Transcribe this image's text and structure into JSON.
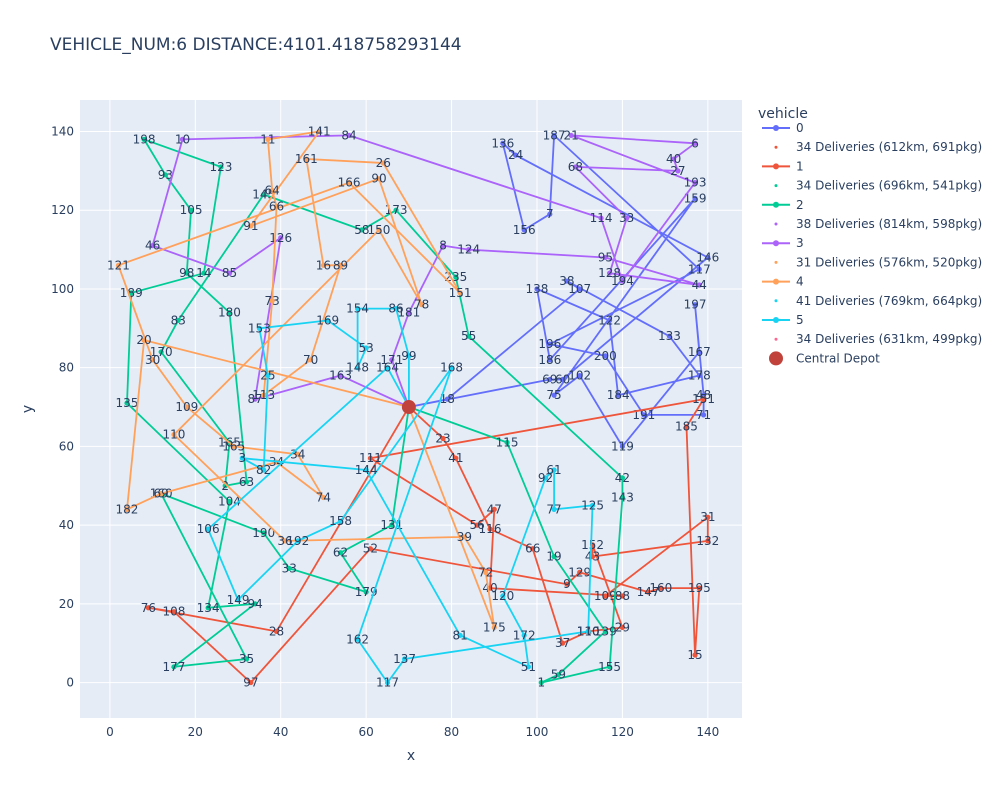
{
  "chart_data": {
    "type": "line",
    "title": "VEHICLE_NUM:6 DISTANCE:4101.418758293144",
    "xlabel": "x",
    "ylabel": "y",
    "xlim": [
      -7,
      148
    ],
    "ylim": [
      -9,
      148
    ],
    "xticks": [
      0,
      20,
      40,
      60,
      80,
      100,
      120,
      140
    ],
    "yticks": [
      0,
      20,
      40,
      60,
      80,
      100,
      120,
      140
    ],
    "grid": true,
    "legend_title": "vehicle",
    "legend_position": "right",
    "depot": {
      "name": "Central Depot",
      "x": 70,
      "y": 70,
      "color": "#C0423A"
    },
    "series": [
      {
        "name": "0",
        "color": "#636efa",
        "info": "34 Deliveries (612km, 691pkg)",
        "points": [
          {
            "id": "",
            "x": 70,
            "y": 70
          },
          {
            "id": "18",
            "x": 79,
            "y": 72
          },
          {
            "id": "107",
            "x": 110,
            "y": 100
          },
          {
            "id": "38",
            "x": 107,
            "y": 102
          },
          {
            "id": "133",
            "x": 131,
            "y": 88
          },
          {
            "id": "178",
            "x": 138,
            "y": 78
          },
          {
            "id": "184",
            "x": 119,
            "y": 73
          },
          {
            "id": "122",
            "x": 117,
            "y": 92
          },
          {
            "id": "138",
            "x": 100,
            "y": 100
          },
          {
            "id": "186",
            "x": 103,
            "y": 82
          },
          {
            "id": "159",
            "x": 137,
            "y": 123
          },
          {
            "id": "75",
            "x": 104,
            "y": 73
          },
          {
            "id": "102",
            "x": 110,
            "y": 78
          },
          {
            "id": "119",
            "x": 120,
            "y": 60
          },
          {
            "id": "167",
            "x": 138,
            "y": 84
          },
          {
            "id": "197",
            "x": 137,
            "y": 96
          },
          {
            "id": "48",
            "x": 139,
            "y": 73
          },
          {
            "id": "71",
            "x": 139,
            "y": 68
          },
          {
            "id": "191",
            "x": 125,
            "y": 68
          },
          {
            "id": "200",
            "x": 116,
            "y": 83
          },
          {
            "id": "196",
            "x": 103,
            "y": 86
          },
          {
            "id": "117",
            "x": 138,
            "y": 105
          },
          {
            "id": "187",
            "x": 104,
            "y": 139
          },
          {
            "id": "7",
            "x": 103,
            "y": 119
          },
          {
            "id": "156",
            "x": 97,
            "y": 115
          },
          {
            "id": "136",
            "x": 92,
            "y": 137
          },
          {
            "id": "24",
            "x": 95,
            "y": 134
          },
          {
            "id": "146",
            "x": 140,
            "y": 108
          },
          {
            "id": "60",
            "x": 106,
            "y": 77
          },
          {
            "id": "69",
            "x": 103,
            "y": 77
          },
          {
            "id": "",
            "x": 70,
            "y": 70
          }
        ]
      },
      {
        "name": "34 Deliveries (612km, 691pkg)",
        "color": "#ef553b",
        "marker_only": true,
        "points": []
      },
      {
        "name": "1",
        "color": "#ef553b",
        "info": "34 Deliveries (696km, 541pkg)",
        "points": [
          {
            "id": "",
            "x": 70,
            "y": 70
          },
          {
            "id": "23",
            "x": 78,
            "y": 62
          },
          {
            "id": "41",
            "x": 81,
            "y": 57
          },
          {
            "id": "116",
            "x": 89,
            "y": 39
          },
          {
            "id": "66",
            "x": 99,
            "y": 34
          },
          {
            "id": "37",
            "x": 106,
            "y": 10
          },
          {
            "id": "140",
            "x": 112,
            "y": 13
          },
          {
            "id": "29",
            "x": 120,
            "y": 14
          },
          {
            "id": "152",
            "x": 113,
            "y": 35
          },
          {
            "id": "43",
            "x": 113,
            "y": 32
          },
          {
            "id": "132",
            "x": 140,
            "y": 36
          },
          {
            "id": "31",
            "x": 140,
            "y": 42
          },
          {
            "id": "109",
            "x": 116,
            "y": 22
          },
          {
            "id": "88",
            "x": 120,
            "y": 22
          },
          {
            "id": "40",
            "x": 89,
            "y": 24
          },
          {
            "id": "47",
            "x": 90,
            "y": 44
          },
          {
            "id": "56",
            "x": 86,
            "y": 40
          },
          {
            "id": "111",
            "x": 61,
            "y": 57
          },
          {
            "id": "151",
            "x": 139,
            "y": 72
          },
          {
            "id": "185",
            "x": 135,
            "y": 65
          },
          {
            "id": "15",
            "x": 137,
            "y": 7
          },
          {
            "id": "195",
            "x": 138,
            "y": 24
          },
          {
            "id": "160",
            "x": 129,
            "y": 24
          },
          {
            "id": "147",
            "x": 126,
            "y": 23
          },
          {
            "id": "129",
            "x": 110,
            "y": 28
          },
          {
            "id": "9",
            "x": 107,
            "y": 25
          },
          {
            "id": "52",
            "x": 61,
            "y": 34
          },
          {
            "id": "97",
            "x": 33,
            "y": 0
          },
          {
            "id": "108",
            "x": 15,
            "y": 18
          },
          {
            "id": "76",
            "x": 9,
            "y": 19
          },
          {
            "id": "28",
            "x": 39,
            "y": 13
          },
          {
            "id": "",
            "x": 70,
            "y": 70
          }
        ]
      },
      {
        "name": "34 Deliveries (696km, 541pkg)",
        "color": "#00cc96",
        "marker_only": true,
        "points": []
      },
      {
        "name": "2",
        "color": "#00cc96",
        "info": "38 Deliveries (814km, 598pkg)",
        "points": [
          {
            "id": "",
            "x": 70,
            "y": 70
          },
          {
            "id": "115",
            "x": 93,
            "y": 61
          },
          {
            "id": "19",
            "x": 104,
            "y": 32
          },
          {
            "id": "139",
            "x": 116,
            "y": 13
          },
          {
            "id": "59",
            "x": 105,
            "y": 2
          },
          {
            "id": "1",
            "x": 101,
            "y": 0
          },
          {
            "id": "155",
            "x": 117,
            "y": 4
          },
          {
            "id": "143",
            "x": 120,
            "y": 47
          },
          {
            "id": "42",
            "x": 120,
            "y": 52
          },
          {
            "id": "55",
            "x": 84,
            "y": 88
          },
          {
            "id": "235",
            "x": 81,
            "y": 103
          },
          {
            "id": "173",
            "x": 67,
            "y": 120
          },
          {
            "id": "58",
            "x": 59,
            "y": 115
          },
          {
            "id": "145",
            "x": 36,
            "y": 124
          },
          {
            "id": "83",
            "x": 16,
            "y": 92
          },
          {
            "id": "170",
            "x": 12,
            "y": 84
          },
          {
            "id": "165",
            "x": 28,
            "y": 61
          },
          {
            "id": "2",
            "x": 27,
            "y": 50
          },
          {
            "id": "63",
            "x": 32,
            "y": 51
          },
          {
            "id": "180",
            "x": 28,
            "y": 94
          },
          {
            "id": "98",
            "x": 18,
            "y": 104
          },
          {
            "id": "105",
            "x": 19,
            "y": 120
          },
          {
            "id": "93",
            "x": 13,
            "y": 129
          },
          {
            "id": "198",
            "x": 8,
            "y": 138
          },
          {
            "id": "123",
            "x": 26,
            "y": 131
          },
          {
            "id": "14",
            "x": 22,
            "y": 104
          },
          {
            "id": "189",
            "x": 5,
            "y": 99
          },
          {
            "id": "135",
            "x": 4,
            "y": 71
          },
          {
            "id": "104",
            "x": 28,
            "y": 46
          },
          {
            "id": "134",
            "x": 23,
            "y": 19
          },
          {
            "id": "94",
            "x": 34,
            "y": 20
          },
          {
            "id": "177",
            "x": 15,
            "y": 4
          },
          {
            "id": "35",
            "x": 32,
            "y": 6
          },
          {
            "id": "160",
            "x": 12,
            "y": 48
          },
          {
            "id": "190",
            "x": 36,
            "y": 38
          },
          {
            "id": "33",
            "x": 42,
            "y": 29
          },
          {
            "id": "179",
            "x": 60,
            "y": 23
          },
          {
            "id": "62",
            "x": 54,
            "y": 33
          },
          {
            "id": "131",
            "x": 66,
            "y": 40
          },
          {
            "id": "",
            "x": 70,
            "y": 70
          }
        ]
      },
      {
        "name": "38 Deliveries (814km, 598pkg)",
        "color": "#ab63fa",
        "marker_only": true,
        "points": []
      },
      {
        "name": "3",
        "color": "#ab63fa",
        "info": "31 Deliveries (576km, 520pkg)",
        "points": [
          {
            "id": "",
            "x": 70,
            "y": 70
          },
          {
            "id": "171",
            "x": 66,
            "y": 82
          },
          {
            "id": "181",
            "x": 70,
            "y": 94
          },
          {
            "id": "8",
            "x": 78,
            "y": 111
          },
          {
            "id": "124",
            "x": 84,
            "y": 110
          },
          {
            "id": "95",
            "x": 116,
            "y": 108
          },
          {
            "id": "44",
            "x": 138,
            "y": 101
          },
          {
            "id": "128",
            "x": 117,
            "y": 104
          },
          {
            "id": "33",
            "x": 121,
            "y": 118
          },
          {
            "id": "68",
            "x": 109,
            "y": 131
          },
          {
            "id": "27",
            "x": 133,
            "y": 130
          },
          {
            "id": "40",
            "x": 132,
            "y": 133
          },
          {
            "id": "6",
            "x": 137,
            "y": 137
          },
          {
            "id": "21",
            "x": 108,
            "y": 139
          },
          {
            "id": "193",
            "x": 137,
            "y": 127
          },
          {
            "id": "194",
            "x": 120,
            "y": 102
          },
          {
            "id": "114",
            "x": 115,
            "y": 118
          },
          {
            "id": "84",
            "x": 56,
            "y": 139
          },
          {
            "id": "10",
            "x": 17,
            "y": 138
          },
          {
            "id": "46",
            "x": 10,
            "y": 111
          },
          {
            "id": "85",
            "x": 28,
            "y": 104
          },
          {
            "id": "126",
            "x": 40,
            "y": 113
          },
          {
            "id": "87",
            "x": 34,
            "y": 72
          },
          {
            "id": "163",
            "x": 54,
            "y": 78
          },
          {
            "id": "",
            "x": 70,
            "y": 70
          }
        ]
      },
      {
        "name": "31 Deliveries (576km, 520pkg)",
        "color": "#ffa15a",
        "marker_only": true,
        "points": []
      },
      {
        "name": "4",
        "color": "#ffa15a",
        "info": "41 Deliveries (769km, 664pkg)",
        "points": [
          {
            "id": "",
            "x": 70,
            "y": 70
          },
          {
            "id": "175",
            "x": 90,
            "y": 14
          },
          {
            "id": "72",
            "x": 88,
            "y": 28
          },
          {
            "id": "39",
            "x": 83,
            "y": 37
          },
          {
            "id": "36",
            "x": 41,
            "y": 36
          },
          {
            "id": "110",
            "x": 15,
            "y": 63
          },
          {
            "id": "150",
            "x": 63,
            "y": 115
          },
          {
            "id": "78",
            "x": 73,
            "y": 96
          },
          {
            "id": "90",
            "x": 63,
            "y": 128
          },
          {
            "id": "91",
            "x": 33,
            "y": 116
          },
          {
            "id": "141",
            "x": 49,
            "y": 140
          },
          {
            "id": "11",
            "x": 37,
            "y": 138
          },
          {
            "id": "64",
            "x": 38,
            "y": 125
          },
          {
            "id": "66",
            "x": 39,
            "y": 121
          },
          {
            "id": "73",
            "x": 38,
            "y": 97
          },
          {
            "id": "113",
            "x": 36,
            "y": 73
          },
          {
            "id": "70",
            "x": 47,
            "y": 82
          },
          {
            "id": "89",
            "x": 54,
            "y": 106
          },
          {
            "id": "16",
            "x": 50,
            "y": 106
          },
          {
            "id": "161",
            "x": 46,
            "y": 133
          },
          {
            "id": "26",
            "x": 64,
            "y": 132
          },
          {
            "id": "151",
            "x": 82,
            "y": 99
          },
          {
            "id": "166",
            "x": 56,
            "y": 127
          },
          {
            "id": "121",
            "x": 2,
            "y": 106
          },
          {
            "id": "30",
            "x": 10,
            "y": 82
          },
          {
            "id": "109",
            "x": 18,
            "y": 70
          },
          {
            "id": "165",
            "x": 29,
            "y": 60
          },
          {
            "id": "34",
            "x": 44,
            "y": 58
          },
          {
            "id": "74",
            "x": 50,
            "y": 47
          },
          {
            "id": "34",
            "x": 39,
            "y": 56
          },
          {
            "id": "69",
            "x": 12,
            "y": 48
          },
          {
            "id": "182",
            "x": 4,
            "y": 44
          },
          {
            "id": "20",
            "x": 8,
            "y": 87
          },
          {
            "id": "",
            "x": 70,
            "y": 70
          }
        ]
      },
      {
        "name": "41 Deliveries (769km, 664pkg)",
        "color": "#19d3f3",
        "marker_only": true,
        "points": []
      },
      {
        "name": "5",
        "color": "#19d3f3",
        "info": "34 Deliveries (631km, 499pkg)",
        "points": [
          {
            "id": "",
            "x": 70,
            "y": 70
          },
          {
            "id": "99",
            "x": 70,
            "y": 83
          },
          {
            "id": "86",
            "x": 67,
            "y": 95
          },
          {
            "id": "154",
            "x": 58,
            "y": 95
          },
          {
            "id": "148",
            "x": 58,
            "y": 80
          },
          {
            "id": "53",
            "x": 60,
            "y": 85
          },
          {
            "id": "169",
            "x": 51,
            "y": 92
          },
          {
            "id": "153",
            "x": 35,
            "y": 90
          },
          {
            "id": "25",
            "x": 37,
            "y": 78
          },
          {
            "id": "82",
            "x": 36,
            "y": 54
          },
          {
            "id": "3",
            "x": 31,
            "y": 57
          },
          {
            "id": "144",
            "x": 60,
            "y": 54
          },
          {
            "id": "81",
            "x": 82,
            "y": 12
          },
          {
            "id": "51",
            "x": 98,
            "y": 4
          },
          {
            "id": "172",
            "x": 97,
            "y": 12
          },
          {
            "id": "120",
            "x": 92,
            "y": 22
          },
          {
            "id": "92",
            "x": 102,
            "y": 52
          },
          {
            "id": "61",
            "x": 104,
            "y": 54
          },
          {
            "id": "77",
            "x": 104,
            "y": 44
          },
          {
            "id": "125",
            "x": 113,
            "y": 45
          },
          {
            "id": "110",
            "x": 112,
            "y": 13
          },
          {
            "id": "137",
            "x": 69,
            "y": 6
          },
          {
            "id": "117",
            "x": 65,
            "y": 0
          },
          {
            "id": "162",
            "x": 58,
            "y": 11
          },
          {
            "id": "168",
            "x": 80,
            "y": 80
          },
          {
            "id": "158",
            "x": 54,
            "y": 41
          },
          {
            "id": "192",
            "x": 44,
            "y": 36
          },
          {
            "id": "149",
            "x": 30,
            "y": 21
          },
          {
            "id": "106",
            "x": 23,
            "y": 39
          },
          {
            "id": "164",
            "x": 65,
            "y": 80
          },
          {
            "id": "",
            "x": 70,
            "y": 70
          }
        ]
      },
      {
        "name": "34 Deliveries (631km, 499pkg)",
        "color": "#ff6692",
        "marker_only": true,
        "points": []
      }
    ]
  }
}
